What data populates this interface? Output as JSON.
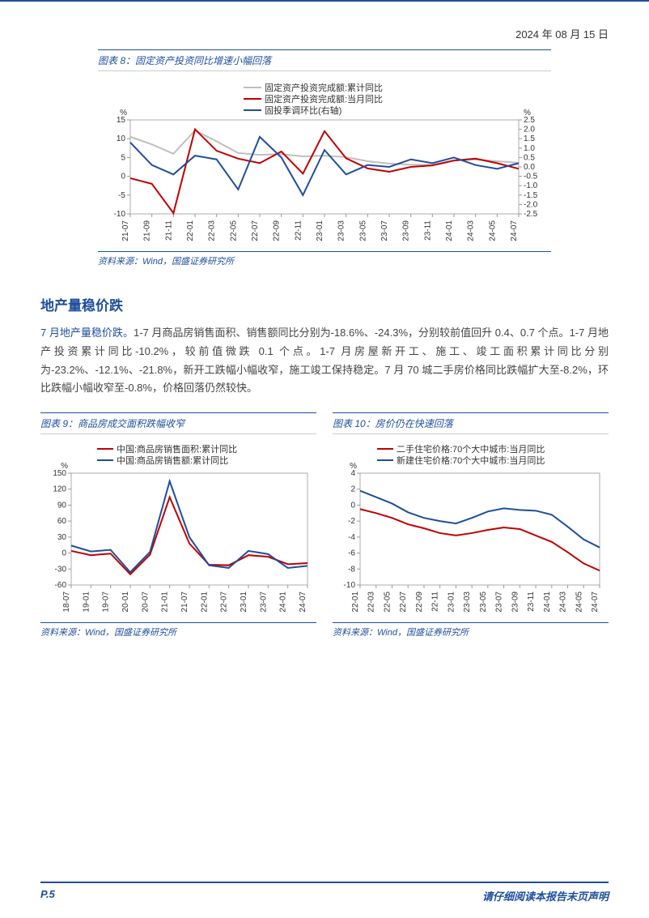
{
  "header": {
    "date": "2024 年 08 月 15 日"
  },
  "chart8": {
    "title": "图表 8：固定资产投资同比增速小幅回落",
    "source": "资料来源：Wind，国盛证券研究所",
    "type": "line",
    "background_color": "#ffffff",
    "legend": [
      {
        "label": "固定资产投资完成额:累计同比",
        "color": "#bfbfbf"
      },
      {
        "label": "固定资产投资完成额:当月同比",
        "color": "#c00000"
      },
      {
        "label": "固投季调环比(右轴)",
        "color": "#1f4e9c"
      }
    ],
    "left_axis": {
      "unit": "%",
      "min": -10,
      "max": 15,
      "ticks": [
        -10,
        -5,
        0,
        5,
        10,
        15
      ]
    },
    "right_axis": {
      "unit": "%",
      "min": -2.5,
      "max": 2.5,
      "ticks": [
        -2.5,
        -2.0,
        -1.5,
        -1.0,
        -0.5,
        0.0,
        0.5,
        1.0,
        1.5,
        2.0,
        2.5
      ]
    },
    "x_labels": [
      "21-07",
      "21-09",
      "21-11",
      "22-01",
      "22-03",
      "22-05",
      "22-07",
      "22-09",
      "22-11",
      "23-01",
      "23-03",
      "23-05",
      "23-07",
      "23-09",
      "23-11",
      "24-01",
      "24-03",
      "24-05",
      "24-07"
    ],
    "series_grey_left": [
      10.5,
      8.5,
      6.0,
      12.2,
      9.3,
      6.2,
      5.7,
      5.9,
      5.3,
      5.5,
      5.1,
      4.0,
      3.4,
      3.1,
      3.0,
      4.2,
      4.5,
      4.0,
      3.6
    ],
    "series_red_left": [
      -0.5,
      -2.0,
      -9.8,
      12.5,
      6.8,
      4.7,
      3.5,
      6.6,
      0.7,
      12.0,
      4.8,
      2.1,
      1.2,
      2.5,
      2.9,
      4.2,
      4.7,
      3.5,
      2.0
    ],
    "series_blue_right": [
      1.3,
      0.1,
      -0.4,
      0.6,
      0.4,
      -1.2,
      1.6,
      0.5,
      -1.5,
      0.9,
      -0.4,
      0.1,
      0.0,
      0.4,
      0.2,
      0.5,
      0.1,
      -0.1,
      0.2
    ]
  },
  "section": {
    "title": "地产量稳价跌",
    "lead": "7 月地产量稳价跌。",
    "body": "1-7 月商品房销售面积、销售额同比分别为-18.6%、-24.3%，分别较前值回升 0.4、0.7 个点。1-7 月地产投资累计同比-10.2%，较前值微跌 0.1 个点。1-7 月房屋新开工、施工、竣工面积累计同比分别为-23.2%、-12.1%、-21.8%，新开工跌幅小幅收窄，施工竣工保持稳定。7 月 70 城二手房价格同比跌幅扩大至-8.2%，环比跌幅小幅收窄至-0.8%，价格回落仍然较快。"
  },
  "chart9": {
    "title": "图表 9：商品房成交面积跌幅收窄",
    "source": "资料来源：Wind，国盛证券研究所",
    "type": "line",
    "legend": [
      {
        "label": "中国:商品房销售面积:累计同比",
        "color": "#c00000"
      },
      {
        "label": "中国:商品房销售额:累计同比",
        "color": "#1f4e9c"
      }
    ],
    "y_axis": {
      "unit": "%",
      "min": -60,
      "max": 150,
      "ticks": [
        -60,
        -30,
        0,
        30,
        60,
        90,
        120,
        150
      ]
    },
    "x_labels": [
      "18-07",
      "19-01",
      "19-07",
      "20-01",
      "20-07",
      "21-01",
      "21-07",
      "22-01",
      "22-07",
      "23-01",
      "23-07",
      "24-01",
      "24-07"
    ],
    "series_red": [
      4,
      -4,
      -1,
      -40,
      -3,
      105,
      18,
      -22,
      -23,
      -4,
      -7,
      -21,
      -19
    ],
    "series_blue": [
      14,
      3,
      6,
      -36,
      2,
      135,
      30,
      -23,
      -28,
      4,
      -2,
      -28,
      -24
    ]
  },
  "chart10": {
    "title": "图表 10：房价仍在快速回落",
    "source": "资料来源：Wind，国盛证券研究所",
    "type": "line",
    "legend": [
      {
        "label": "二手住宅价格:70个大中城市:当月同比",
        "color": "#c00000"
      },
      {
        "label": "新建住宅价格:70个大中城市:当月同比",
        "color": "#1f4e9c"
      }
    ],
    "y_axis": {
      "unit": "%",
      "min": -10,
      "max": 4,
      "ticks": [
        -10,
        -8,
        -6,
        -4,
        -2,
        0,
        2,
        4
      ]
    },
    "x_labels": [
      "22-01",
      "22-03",
      "22-05",
      "22-07",
      "22-09",
      "22-11",
      "23-01",
      "23-03",
      "23-05",
      "23-07",
      "23-09",
      "23-11",
      "24-01",
      "24-03",
      "24-05",
      "24-07"
    ],
    "series_red": [
      -0.5,
      -1.0,
      -1.6,
      -2.4,
      -2.9,
      -3.5,
      -3.8,
      -3.5,
      -3.1,
      -2.8,
      -3.0,
      -3.8,
      -4.6,
      -5.9,
      -7.3,
      -8.2
    ],
    "series_blue": [
      1.8,
      1.0,
      0.2,
      -0.9,
      -1.6,
      -2.0,
      -2.3,
      -1.6,
      -0.8,
      -0.4,
      -0.6,
      -0.7,
      -1.2,
      -2.7,
      -4.3,
      -5.3
    ]
  },
  "footer": {
    "page": "P.5",
    "disclaimer": "请仔细阅读本报告末页声明"
  }
}
